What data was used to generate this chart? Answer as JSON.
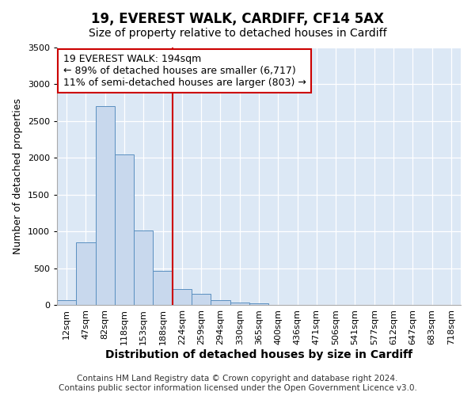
{
  "title1": "19, EVEREST WALK, CARDIFF, CF14 5AX",
  "title2": "Size of property relative to detached houses in Cardiff",
  "xlabel": "Distribution of detached houses by size in Cardiff",
  "ylabel": "Number of detached properties",
  "annotation_line1": "19 EVEREST WALK: 194sqm",
  "annotation_line2": "← 89% of detached houses are smaller (6,717)",
  "annotation_line3": "11% of semi-detached houses are larger (803) →",
  "bar_color": "#c8d8ed",
  "bar_edge_color": "#5a8fc0",
  "vline_color": "#cc0000",
  "categories": [
    "12sqm",
    "47sqm",
    "82sqm",
    "118sqm",
    "153sqm",
    "188sqm",
    "224sqm",
    "259sqm",
    "294sqm",
    "330sqm",
    "365sqm",
    "400sqm",
    "436sqm",
    "471sqm",
    "506sqm",
    "541sqm",
    "577sqm",
    "612sqm",
    "647sqm",
    "683sqm",
    "718sqm"
  ],
  "bar_heights": [
    60,
    850,
    2700,
    2050,
    1010,
    460,
    215,
    150,
    70,
    30,
    20,
    5,
    3,
    2,
    1,
    0,
    0,
    0,
    0,
    0,
    0
  ],
  "ylim": [
    0,
    3500
  ],
  "yticks": [
    0,
    500,
    1000,
    1500,
    2000,
    2500,
    3000,
    3500
  ],
  "footnote1": "Contains HM Land Registry data © Crown copyright and database right 2024.",
  "footnote2": "Contains public sector information licensed under the Open Government Licence v3.0.",
  "fig_bg_color": "#ffffff",
  "plot_bg_color": "#dce8f5",
  "grid_color": "#ffffff",
  "title1_fontsize": 12,
  "title2_fontsize": 10,
  "xlabel_fontsize": 10,
  "ylabel_fontsize": 9,
  "tick_fontsize": 8,
  "footnote_fontsize": 7.5,
  "annotation_fontsize": 9
}
